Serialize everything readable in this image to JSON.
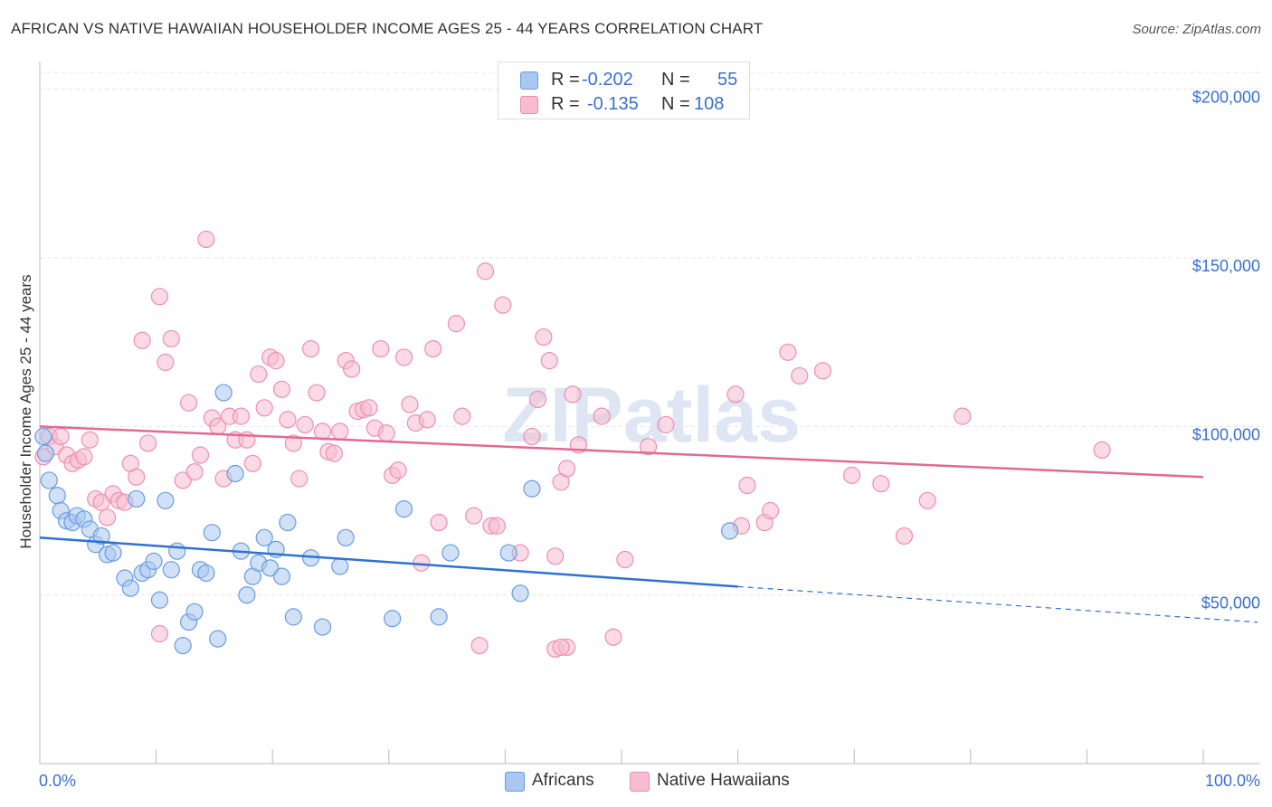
{
  "title": "AFRICAN VS NATIVE HAWAIIAN HOUSEHOLDER INCOME AGES 25 - 44 YEARS CORRELATION CHART",
  "source": "Source: ZipAtlas.com",
  "watermark": "ZIPatlas",
  "legend_top": [
    {
      "r_label": "R =",
      "r_value": "-0.202",
      "n_label": "N =",
      "n_value": "55"
    },
    {
      "r_label": "R =",
      "r_value": "-0.135",
      "n_label": "N =",
      "n_value": "108"
    }
  ],
  "legend_bottom": [
    "Africans",
    "Native Hawaiians"
  ],
  "colors": {
    "blue_fill": "#a9c8f0",
    "blue_stroke": "#6a9be0",
    "blue_line": "#2f72d0",
    "pink_fill": "#f7bcd0",
    "pink_stroke": "#ec8fb0",
    "pink_line": "#e06a94",
    "tick_label": "#3b6fd0",
    "grid": "#e4e4e4"
  },
  "chart_data": {
    "type": "scatter",
    "xlabel": "",
    "ylabel": "Householder Income Ages 25 - 44 years",
    "xlim": [
      0,
      100
    ],
    "ylim": [
      0,
      205000
    ],
    "x_tick_labels": [
      "0.0%",
      "100.0%"
    ],
    "y_ticks": [
      50000,
      100000,
      150000,
      200000
    ],
    "y_tick_labels": [
      "$50,000",
      "$100,000",
      "$150,000",
      "$200,000"
    ],
    "grid": true,
    "legend_position": "top-center",
    "series": [
      {
        "name": "Africans",
        "color": "#6a9be0",
        "trend": {
          "x": [
            0,
            60
          ],
          "y": [
            67000,
            52500
          ],
          "dashed_to": [
            100,
            43000
          ]
        },
        "points": [
          [
            0.3,
            97000
          ],
          [
            0.8,
            84000
          ],
          [
            1.5,
            79500
          ],
          [
            1.8,
            75000
          ],
          [
            2.3,
            72000
          ],
          [
            2.8,
            71500
          ],
          [
            3.2,
            73500
          ],
          [
            3.8,
            72500
          ],
          [
            4.3,
            69500
          ],
          [
            4.8,
            65000
          ],
          [
            5.3,
            67500
          ],
          [
            5.8,
            62000
          ],
          [
            6.3,
            62500
          ],
          [
            7.3,
            55000
          ],
          [
            7.8,
            52000
          ],
          [
            8.3,
            78500
          ],
          [
            8.8,
            56500
          ],
          [
            9.3,
            57500
          ],
          [
            9.8,
            60000
          ],
          [
            10.3,
            48500
          ],
          [
            10.8,
            78000
          ],
          [
            11.3,
            57500
          ],
          [
            11.8,
            63000
          ],
          [
            12.3,
            35000
          ],
          [
            12.8,
            42000
          ],
          [
            13.3,
            45000
          ],
          [
            13.8,
            57500
          ],
          [
            14.3,
            56500
          ],
          [
            14.8,
            68500
          ],
          [
            15.3,
            37000
          ],
          [
            15.8,
            110000
          ],
          [
            16.8,
            86000
          ],
          [
            17.3,
            63000
          ],
          [
            17.8,
            50000
          ],
          [
            18.3,
            55500
          ],
          [
            18.8,
            59500
          ],
          [
            19.3,
            67000
          ],
          [
            19.8,
            58000
          ],
          [
            20.3,
            63500
          ],
          [
            20.8,
            55500
          ],
          [
            21.3,
            71500
          ],
          [
            21.8,
            43500
          ],
          [
            23.3,
            61000
          ],
          [
            24.3,
            40500
          ],
          [
            25.8,
            58500
          ],
          [
            26.3,
            67000
          ],
          [
            30.3,
            43000
          ],
          [
            31.3,
            75500
          ],
          [
            34.3,
            43500
          ],
          [
            35.3,
            62500
          ],
          [
            40.3,
            62500
          ],
          [
            41.3,
            50500
          ],
          [
            42.3,
            81500
          ],
          [
            59.3,
            69000
          ],
          [
            0.5,
            92000
          ]
        ]
      },
      {
        "name": "Native Hawaiians",
        "color": "#ec8fb0",
        "trend": {
          "x": [
            0,
            100
          ],
          "y": [
            100000,
            85000
          ]
        },
        "points": [
          [
            0.3,
            91000
          ],
          [
            0.8,
            97000
          ],
          [
            1.3,
            94000
          ],
          [
            1.8,
            97000
          ],
          [
            2.3,
            91500
          ],
          [
            2.8,
            89000
          ],
          [
            3.3,
            90000
          ],
          [
            3.8,
            91000
          ],
          [
            4.3,
            96000
          ],
          [
            4.8,
            78500
          ],
          [
            5.3,
            77500
          ],
          [
            5.8,
            73000
          ],
          [
            6.3,
            80000
          ],
          [
            6.8,
            78000
          ],
          [
            7.3,
            77500
          ],
          [
            7.8,
            89000
          ],
          [
            8.3,
            85000
          ],
          [
            8.8,
            125500
          ],
          [
            9.3,
            95000
          ],
          [
            10.3,
            138500
          ],
          [
            10.8,
            119000
          ],
          [
            11.3,
            126000
          ],
          [
            12.3,
            84000
          ],
          [
            12.8,
            107000
          ],
          [
            13.3,
            86500
          ],
          [
            13.8,
            91500
          ],
          [
            14.3,
            155500
          ],
          [
            14.8,
            102500
          ],
          [
            15.3,
            100000
          ],
          [
            15.8,
            84500
          ],
          [
            16.3,
            103000
          ],
          [
            16.8,
            96000
          ],
          [
            17.3,
            103000
          ],
          [
            17.8,
            96000
          ],
          [
            18.3,
            89000
          ],
          [
            18.8,
            115500
          ],
          [
            19.3,
            105500
          ],
          [
            19.8,
            120500
          ],
          [
            20.3,
            119500
          ],
          [
            20.8,
            111000
          ],
          [
            21.3,
            102000
          ],
          [
            21.8,
            95000
          ],
          [
            22.3,
            84500
          ],
          [
            22.8,
            100500
          ],
          [
            23.3,
            123000
          ],
          [
            23.8,
            110000
          ],
          [
            24.3,
            98500
          ],
          [
            24.8,
            92500
          ],
          [
            25.3,
            92000
          ],
          [
            25.8,
            98500
          ],
          [
            26.3,
            119500
          ],
          [
            26.8,
            117000
          ],
          [
            27.3,
            104500
          ],
          [
            27.8,
            105000
          ],
          [
            28.3,
            105500
          ],
          [
            28.8,
            99500
          ],
          [
            29.3,
            123000
          ],
          [
            29.8,
            98000
          ],
          [
            30.3,
            85500
          ],
          [
            30.8,
            87000
          ],
          [
            31.3,
            120500
          ],
          [
            31.8,
            106500
          ],
          [
            32.3,
            101000
          ],
          [
            32.8,
            59500
          ],
          [
            33.3,
            102000
          ],
          [
            33.8,
            123000
          ],
          [
            34.3,
            71500
          ],
          [
            35.8,
            130500
          ],
          [
            36.3,
            103000
          ],
          [
            37.3,
            73500
          ],
          [
            38.3,
            146000
          ],
          [
            38.8,
            70500
          ],
          [
            39.3,
            70500
          ],
          [
            39.8,
            136000
          ],
          [
            41.3,
            62500
          ],
          [
            42.3,
            97000
          ],
          [
            42.8,
            108000
          ],
          [
            43.3,
            126500
          ],
          [
            43.8,
            119500
          ],
          [
            44.3,
            61500
          ],
          [
            44.8,
            83500
          ],
          [
            45.3,
            87500
          ],
          [
            45.8,
            109500
          ],
          [
            46.3,
            94500
          ],
          [
            48.3,
            103000
          ],
          [
            49.3,
            37500
          ],
          [
            50.3,
            60500
          ],
          [
            52.3,
            94000
          ],
          [
            53.8,
            100500
          ],
          [
            59.8,
            109500
          ],
          [
            60.3,
            70500
          ],
          [
            60.8,
            82500
          ],
          [
            62.3,
            71500
          ],
          [
            62.8,
            75000
          ],
          [
            64.3,
            122000
          ],
          [
            65.3,
            115000
          ],
          [
            67.3,
            116500
          ],
          [
            69.8,
            85500
          ],
          [
            72.3,
            83000
          ],
          [
            74.3,
            67500
          ],
          [
            76.3,
            78000
          ],
          [
            79.3,
            103000
          ],
          [
            91.3,
            93000
          ],
          [
            10.3,
            38500
          ],
          [
            37.8,
            35000
          ],
          [
            44.3,
            34000
          ],
          [
            45.3,
            34500
          ],
          [
            44.8,
            34500
          ]
        ]
      }
    ]
  }
}
